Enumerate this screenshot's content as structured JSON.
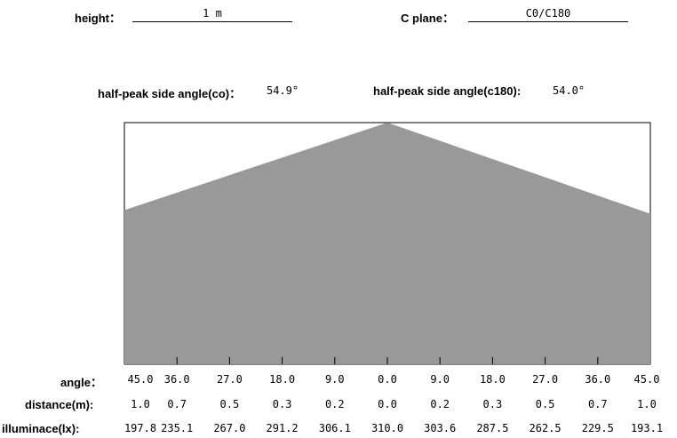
{
  "header": {
    "height_label": "height：",
    "height_value": "1 m",
    "cplane_label": "C plane：",
    "cplane_value": "C0/C180"
  },
  "half_peak": {
    "c0_label": "half-peak side angle(co)：",
    "c0_value": "54.9°",
    "c180_label": "half-peak side angle(c180):",
    "c180_value": "54.0°"
  },
  "chart_data": {
    "type": "area",
    "x": [
      -45.0,
      -36.0,
      -27.0,
      -18.0,
      -9.0,
      0.0,
      9.0,
      18.0,
      27.0,
      36.0,
      45.0
    ],
    "y": [
      197.8,
      235.1,
      267.0,
      291.2,
      306.1,
      310.0,
      303.6,
      287.5,
      262.5,
      229.5,
      193.1
    ],
    "fill_color": "#999999",
    "border_color": "#000000",
    "rows": {
      "angle": {
        "label": "angle：",
        "values": [
          "45.0",
          "36.0",
          "27.0",
          "18.0",
          "9.0",
          "0.0",
          "9.0",
          "18.0",
          "27.0",
          "36.0",
          "45.0"
        ]
      },
      "distance": {
        "label": "distance(m):",
        "values": [
          "1.0",
          "0.7",
          "0.5",
          "0.3",
          "0.2",
          "0.0",
          "0.2",
          "0.3",
          "0.5",
          "0.7",
          "1.0"
        ]
      },
      "illuminance": {
        "label": "illuminace(lx):",
        "values": [
          "197.8",
          "235.1",
          "267.0",
          "291.2",
          "306.1",
          "310.0",
          "303.6",
          "287.5",
          "262.5",
          "229.5",
          "193.1"
        ]
      }
    }
  }
}
